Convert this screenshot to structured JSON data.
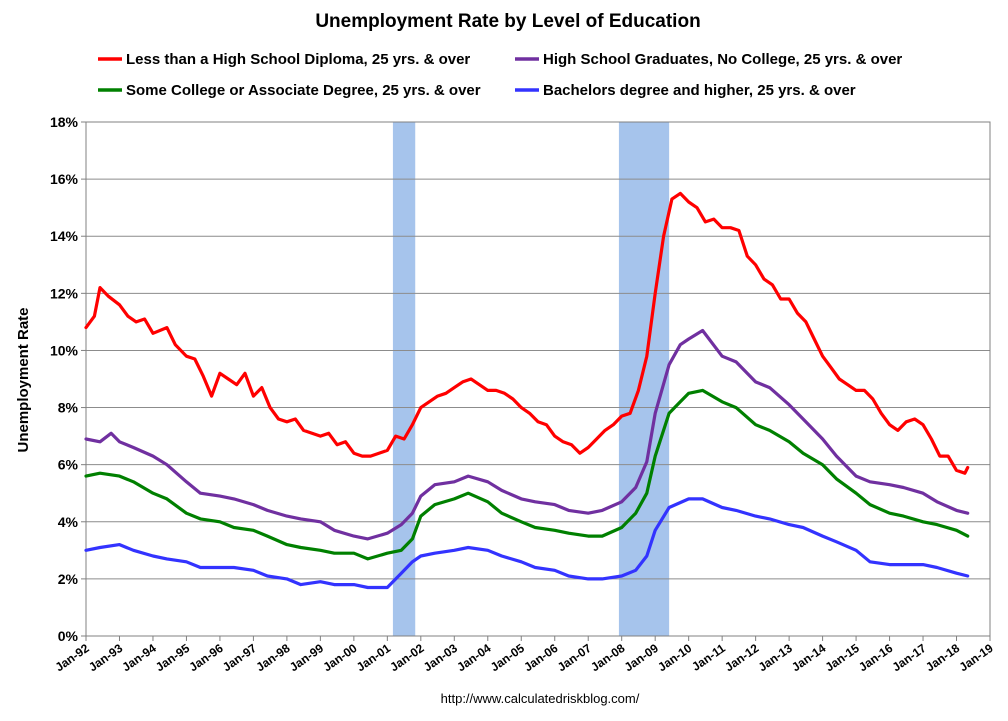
{
  "chart_data": {
    "type": "line",
    "title": "Unemployment Rate by Level of Education",
    "ylabel": "Unemployment Rate",
    "xlabel": "",
    "source": "http://www.calculatedriskblog.com/",
    "ylim": [
      0,
      18
    ],
    "y_ticks": [
      "0%",
      "2%",
      "4%",
      "6%",
      "8%",
      "10%",
      "12%",
      "14%",
      "16%",
      "18%"
    ],
    "x_ticks": [
      "Jan-92",
      "Jan-93",
      "Jan-94",
      "Jan-95",
      "Jan-96",
      "Jan-97",
      "Jan-98",
      "Jan-99",
      "Jan-00",
      "Jan-01",
      "Jan-02",
      "Jan-03",
      "Jan-04",
      "Jan-05",
      "Jan-06",
      "Jan-07",
      "Jan-08",
      "Jan-09",
      "Jan-10",
      "Jan-11",
      "Jan-12",
      "Jan-13",
      "Jan-14",
      "Jan-15",
      "Jan-16",
      "Jan-17",
      "Jan-18",
      "Jan-19"
    ],
    "xlim": [
      "Jan-92",
      "Jan-19"
    ],
    "grid": "horizontal",
    "legend_position": "top",
    "recessions": [
      {
        "start": "Mar-01",
        "end": "Nov-01"
      },
      {
        "start": "Dec-07",
        "end": "Jun-09"
      }
    ],
    "series": [
      {
        "name": "Less than a High School Diploma, 25 yrs. & over",
        "color": "#ff0000",
        "points": [
          [
            "Jan-92",
            10.8
          ],
          [
            "Apr-92",
            11.2
          ],
          [
            "Jun-92",
            12.2
          ],
          [
            "Sep-92",
            11.9
          ],
          [
            "Jan-93",
            11.6
          ],
          [
            "Apr-93",
            11.2
          ],
          [
            "Jul-93",
            11.0
          ],
          [
            "Oct-93",
            11.1
          ],
          [
            "Jan-94",
            10.6
          ],
          [
            "Jun-94",
            10.8
          ],
          [
            "Sep-94",
            10.2
          ],
          [
            "Jan-95",
            9.8
          ],
          [
            "Apr-95",
            9.7
          ],
          [
            "Jul-95",
            9.1
          ],
          [
            "Oct-95",
            8.4
          ],
          [
            "Jan-96",
            9.2
          ],
          [
            "Apr-96",
            9.0
          ],
          [
            "Jul-96",
            8.8
          ],
          [
            "Oct-96",
            9.2
          ],
          [
            "Jan-97",
            8.4
          ],
          [
            "Apr-97",
            8.7
          ],
          [
            "Jul-97",
            8.0
          ],
          [
            "Oct-97",
            7.6
          ],
          [
            "Jan-98",
            7.5
          ],
          [
            "Apr-98",
            7.6
          ],
          [
            "Jul-98",
            7.2
          ],
          [
            "Oct-98",
            7.1
          ],
          [
            "Jan-99",
            7.0
          ],
          [
            "Apr-99",
            7.1
          ],
          [
            "Jul-99",
            6.7
          ],
          [
            "Oct-99",
            6.8
          ],
          [
            "Jan-00",
            6.4
          ],
          [
            "Apr-00",
            6.3
          ],
          [
            "Jul-00",
            6.3
          ],
          [
            "Oct-00",
            6.4
          ],
          [
            "Jan-01",
            6.5
          ],
          [
            "Apr-01",
            7.0
          ],
          [
            "Jul-01",
            6.9
          ],
          [
            "Oct-01",
            7.4
          ],
          [
            "Jan-02",
            8.0
          ],
          [
            "Apr-02",
            8.2
          ],
          [
            "Jul-02",
            8.4
          ],
          [
            "Oct-02",
            8.5
          ],
          [
            "Jan-03",
            8.7
          ],
          [
            "Apr-03",
            8.9
          ],
          [
            "Jul-03",
            9.0
          ],
          [
            "Oct-03",
            8.8
          ],
          [
            "Jan-04",
            8.6
          ],
          [
            "Apr-04",
            8.6
          ],
          [
            "Jul-04",
            8.5
          ],
          [
            "Oct-04",
            8.3
          ],
          [
            "Jan-05",
            8.0
          ],
          [
            "Apr-05",
            7.8
          ],
          [
            "Jul-05",
            7.5
          ],
          [
            "Oct-05",
            7.4
          ],
          [
            "Jan-06",
            7.0
          ],
          [
            "Apr-06",
            6.8
          ],
          [
            "Jul-06",
            6.7
          ],
          [
            "Oct-06",
            6.4
          ],
          [
            "Jan-07",
            6.6
          ],
          [
            "Apr-07",
            6.9
          ],
          [
            "Jul-07",
            7.2
          ],
          [
            "Oct-07",
            7.4
          ],
          [
            "Jan-08",
            7.7
          ],
          [
            "Apr-08",
            7.8
          ],
          [
            "Jul-08",
            8.6
          ],
          [
            "Oct-08",
            9.8
          ],
          [
            "Jan-09",
            12.0
          ],
          [
            "Apr-09",
            14.0
          ],
          [
            "Jul-09",
            15.3
          ],
          [
            "Oct-09",
            15.5
          ],
          [
            "Jan-10",
            15.2
          ],
          [
            "Apr-10",
            15.0
          ],
          [
            "Jul-10",
            14.5
          ],
          [
            "Oct-10",
            14.6
          ],
          [
            "Jan-11",
            14.3
          ],
          [
            "Apr-11",
            14.3
          ],
          [
            "Jul-11",
            14.2
          ],
          [
            "Oct-11",
            13.3
          ],
          [
            "Jan-12",
            13.0
          ],
          [
            "Apr-12",
            12.5
          ],
          [
            "Jul-12",
            12.3
          ],
          [
            "Oct-12",
            11.8
          ],
          [
            "Jan-13",
            11.8
          ],
          [
            "Apr-13",
            11.3
          ],
          [
            "Jul-13",
            11.0
          ],
          [
            "Oct-13",
            10.4
          ],
          [
            "Jan-14",
            9.8
          ],
          [
            "Apr-14",
            9.4
          ],
          [
            "Jul-14",
            9.0
          ],
          [
            "Oct-14",
            8.8
          ],
          [
            "Jan-15",
            8.6
          ],
          [
            "Apr-15",
            8.6
          ],
          [
            "Jul-15",
            8.3
          ],
          [
            "Oct-15",
            7.8
          ],
          [
            "Jan-16",
            7.4
          ],
          [
            "Apr-16",
            7.2
          ],
          [
            "Jul-16",
            7.5
          ],
          [
            "Oct-16",
            7.6
          ],
          [
            "Jan-17",
            7.4
          ],
          [
            "Apr-17",
            6.9
          ],
          [
            "Jul-17",
            6.3
          ],
          [
            "Oct-17",
            6.3
          ],
          [
            "Jan-18",
            5.8
          ],
          [
            "Apr-18",
            5.7
          ],
          [
            "May-18",
            5.9
          ]
        ]
      },
      {
        "name": "High School Graduates, No College, 25 yrs. & over",
        "color": "#7030a0",
        "points": [
          [
            "Jan-92",
            6.9
          ],
          [
            "Jun-92",
            6.8
          ],
          [
            "Oct-92",
            7.1
          ],
          [
            "Jan-93",
            6.8
          ],
          [
            "Jun-93",
            6.6
          ],
          [
            "Jan-94",
            6.3
          ],
          [
            "Jun-94",
            6.0
          ],
          [
            "Jan-95",
            5.4
          ],
          [
            "Jun-95",
            5.0
          ],
          [
            "Jan-96",
            4.9
          ],
          [
            "Jun-96",
            4.8
          ],
          [
            "Jan-97",
            4.6
          ],
          [
            "Jun-97",
            4.4
          ],
          [
            "Jan-98",
            4.2
          ],
          [
            "Jun-98",
            4.1
          ],
          [
            "Jan-99",
            4.0
          ],
          [
            "Jun-99",
            3.7
          ],
          [
            "Jan-00",
            3.5
          ],
          [
            "Jun-00",
            3.4
          ],
          [
            "Jan-01",
            3.6
          ],
          [
            "Jun-01",
            3.9
          ],
          [
            "Oct-01",
            4.3
          ],
          [
            "Jan-02",
            4.9
          ],
          [
            "Jun-02",
            5.3
          ],
          [
            "Jan-03",
            5.4
          ],
          [
            "Jun-03",
            5.6
          ],
          [
            "Jan-04",
            5.4
          ],
          [
            "Jun-04",
            5.1
          ],
          [
            "Jan-05",
            4.8
          ],
          [
            "Jun-05",
            4.7
          ],
          [
            "Jan-06",
            4.6
          ],
          [
            "Jun-06",
            4.4
          ],
          [
            "Jan-07",
            4.3
          ],
          [
            "Jun-07",
            4.4
          ],
          [
            "Jan-08",
            4.7
          ],
          [
            "Jun-08",
            5.2
          ],
          [
            "Oct-08",
            6.1
          ],
          [
            "Jan-09",
            7.8
          ],
          [
            "Jun-09",
            9.5
          ],
          [
            "Oct-09",
            10.2
          ],
          [
            "Jan-10",
            10.4
          ],
          [
            "Jun-10",
            10.7
          ],
          [
            "Jan-11",
            9.8
          ],
          [
            "Jun-11",
            9.6
          ],
          [
            "Jan-12",
            8.9
          ],
          [
            "Jun-12",
            8.7
          ],
          [
            "Jan-13",
            8.1
          ],
          [
            "Jun-13",
            7.6
          ],
          [
            "Jan-14",
            6.9
          ],
          [
            "Jun-14",
            6.3
          ],
          [
            "Jan-15",
            5.6
          ],
          [
            "Jun-15",
            5.4
          ],
          [
            "Jan-16",
            5.3
          ],
          [
            "Jun-16",
            5.2
          ],
          [
            "Jan-17",
            5.0
          ],
          [
            "Jun-17",
            4.7
          ],
          [
            "Jan-18",
            4.4
          ],
          [
            "May-18",
            4.3
          ]
        ]
      },
      {
        "name": "Some College or Associate Degree, 25 yrs. & over",
        "color": "#008000",
        "points": [
          [
            "Jan-92",
            5.6
          ],
          [
            "Jun-92",
            5.7
          ],
          [
            "Jan-93",
            5.6
          ],
          [
            "Jun-93",
            5.4
          ],
          [
            "Jan-94",
            5.0
          ],
          [
            "Jun-94",
            4.8
          ],
          [
            "Jan-95",
            4.3
          ],
          [
            "Jun-95",
            4.1
          ],
          [
            "Jan-96",
            4.0
          ],
          [
            "Jun-96",
            3.8
          ],
          [
            "Jan-97",
            3.7
          ],
          [
            "Jun-97",
            3.5
          ],
          [
            "Jan-98",
            3.2
          ],
          [
            "Jun-98",
            3.1
          ],
          [
            "Jan-99",
            3.0
          ],
          [
            "Jun-99",
            2.9
          ],
          [
            "Jan-00",
            2.9
          ],
          [
            "Jun-00",
            2.7
          ],
          [
            "Jan-01",
            2.9
          ],
          [
            "Jun-01",
            3.0
          ],
          [
            "Oct-01",
            3.4
          ],
          [
            "Jan-02",
            4.2
          ],
          [
            "Jun-02",
            4.6
          ],
          [
            "Jan-03",
            4.8
          ],
          [
            "Jun-03",
            5.0
          ],
          [
            "Jan-04",
            4.7
          ],
          [
            "Jun-04",
            4.3
          ],
          [
            "Jan-05",
            4.0
          ],
          [
            "Jun-05",
            3.8
          ],
          [
            "Jan-06",
            3.7
          ],
          [
            "Jun-06",
            3.6
          ],
          [
            "Jan-07",
            3.5
          ],
          [
            "Jun-07",
            3.5
          ],
          [
            "Jan-08",
            3.8
          ],
          [
            "Jun-08",
            4.3
          ],
          [
            "Oct-08",
            5.0
          ],
          [
            "Jan-09",
            6.3
          ],
          [
            "Jun-09",
            7.8
          ],
          [
            "Oct-09",
            8.2
          ],
          [
            "Jan-10",
            8.5
          ],
          [
            "Jun-10",
            8.6
          ],
          [
            "Jan-11",
            8.2
          ],
          [
            "Jun-11",
            8.0
          ],
          [
            "Jan-12",
            7.4
          ],
          [
            "Jun-12",
            7.2
          ],
          [
            "Jan-13",
            6.8
          ],
          [
            "Jun-13",
            6.4
          ],
          [
            "Jan-14",
            6.0
          ],
          [
            "Jun-14",
            5.5
          ],
          [
            "Jan-15",
            5.0
          ],
          [
            "Jun-15",
            4.6
          ],
          [
            "Jan-16",
            4.3
          ],
          [
            "Jun-16",
            4.2
          ],
          [
            "Jan-17",
            4.0
          ],
          [
            "Jun-17",
            3.9
          ],
          [
            "Jan-18",
            3.7
          ],
          [
            "May-18",
            3.5
          ]
        ]
      },
      {
        "name": "Bachelors degree and higher, 25 yrs. & over",
        "color": "#3333ff",
        "points": [
          [
            "Jan-92",
            3.0
          ],
          [
            "Jun-92",
            3.1
          ],
          [
            "Jan-93",
            3.2
          ],
          [
            "Jun-93",
            3.0
          ],
          [
            "Jan-94",
            2.8
          ],
          [
            "Jun-94",
            2.7
          ],
          [
            "Jan-95",
            2.6
          ],
          [
            "Jun-95",
            2.4
          ],
          [
            "Jan-96",
            2.4
          ],
          [
            "Jun-96",
            2.4
          ],
          [
            "Jan-97",
            2.3
          ],
          [
            "Jun-97",
            2.1
          ],
          [
            "Jan-98",
            2.0
          ],
          [
            "Jun-98",
            1.8
          ],
          [
            "Jan-99",
            1.9
          ],
          [
            "Jun-99",
            1.8
          ],
          [
            "Jan-00",
            1.8
          ],
          [
            "Jun-00",
            1.7
          ],
          [
            "Jan-01",
            1.7
          ],
          [
            "Jun-01",
            2.2
          ],
          [
            "Oct-01",
            2.6
          ],
          [
            "Jan-02",
            2.8
          ],
          [
            "Jun-02",
            2.9
          ],
          [
            "Jan-03",
            3.0
          ],
          [
            "Jun-03",
            3.1
          ],
          [
            "Jan-04",
            3.0
          ],
          [
            "Jun-04",
            2.8
          ],
          [
            "Jan-05",
            2.6
          ],
          [
            "Jun-05",
            2.4
          ],
          [
            "Jan-06",
            2.3
          ],
          [
            "Jun-06",
            2.1
          ],
          [
            "Jan-07",
            2.0
          ],
          [
            "Jun-07",
            2.0
          ],
          [
            "Jan-08",
            2.1
          ],
          [
            "Jun-08",
            2.3
          ],
          [
            "Oct-08",
            2.8
          ],
          [
            "Jan-09",
            3.7
          ],
          [
            "Jun-09",
            4.5
          ],
          [
            "Jan-10",
            4.8
          ],
          [
            "Jun-10",
            4.8
          ],
          [
            "Jan-11",
            4.5
          ],
          [
            "Jun-11",
            4.4
          ],
          [
            "Jan-12",
            4.2
          ],
          [
            "Jun-12",
            4.1
          ],
          [
            "Jan-13",
            3.9
          ],
          [
            "Jun-13",
            3.8
          ],
          [
            "Jan-14",
            3.5
          ],
          [
            "Jun-14",
            3.3
          ],
          [
            "Jan-15",
            3.0
          ],
          [
            "Jun-15",
            2.6
          ],
          [
            "Jan-16",
            2.5
          ],
          [
            "Jun-16",
            2.5
          ],
          [
            "Jan-17",
            2.5
          ],
          [
            "Jun-17",
            2.4
          ],
          [
            "Jan-18",
            2.2
          ],
          [
            "May-18",
            2.1
          ]
        ]
      }
    ]
  }
}
